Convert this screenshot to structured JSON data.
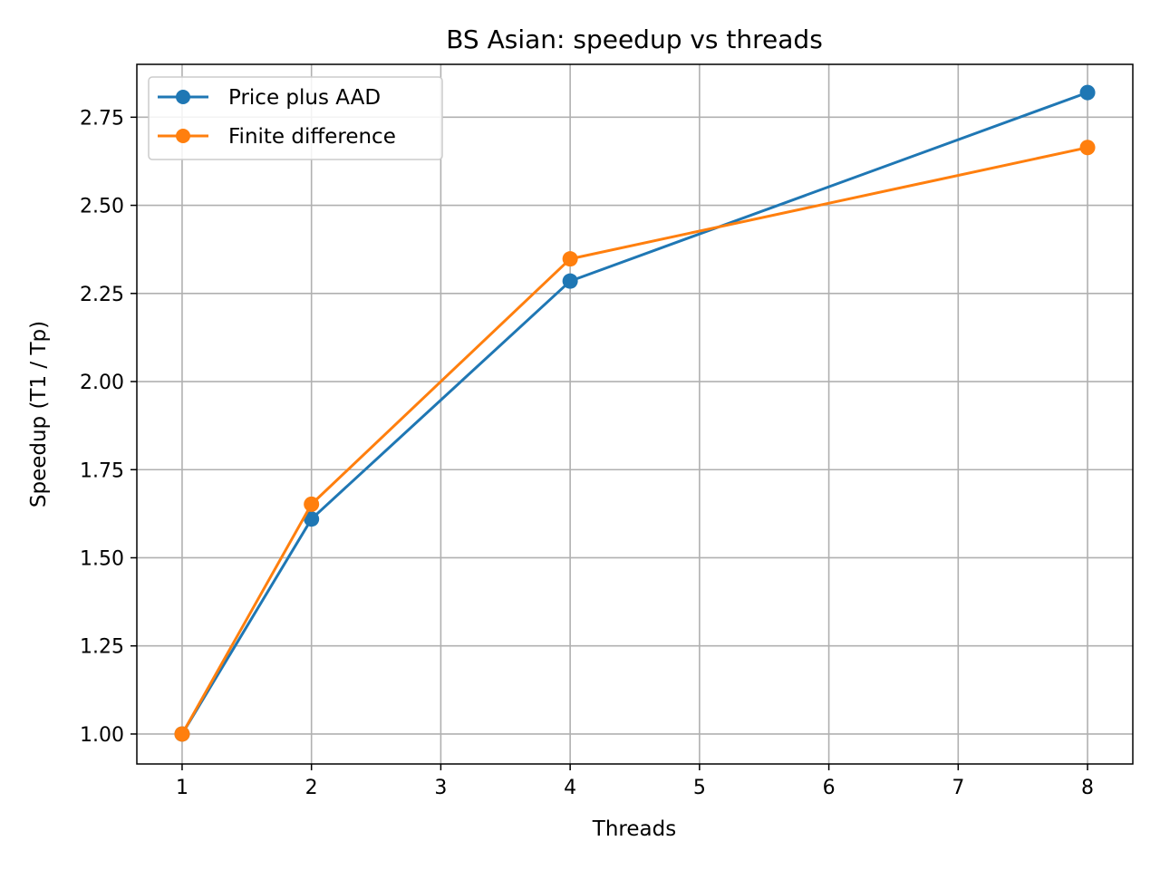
{
  "chart_data": {
    "type": "line",
    "title": "BS Asian: speedup vs threads",
    "xlabel": "Threads",
    "ylabel": "Speedup (T1 / Tp)",
    "xlim": [
      0.65,
      8.35
    ],
    "ylim": [
      0.915,
      2.9
    ],
    "xticks": [
      1,
      2,
      3,
      4,
      5,
      6,
      7,
      8
    ],
    "xtick_labels": [
      "1",
      "2",
      "3",
      "4",
      "5",
      "6",
      "7",
      "8"
    ],
    "yticks": [
      1.0,
      1.25,
      1.5,
      1.75,
      2.0,
      2.25,
      2.5,
      2.75
    ],
    "ytick_labels": [
      "1.00",
      "1.25",
      "1.50",
      "1.75",
      "2.00",
      "2.25",
      "2.50",
      "2.75"
    ],
    "grid": true,
    "legend_position": "top-left",
    "x": [
      1,
      2,
      4,
      8
    ],
    "series": [
      {
        "name": "Price plus AAD",
        "color": "#1f77b4",
        "marker": "circle",
        "values": [
          1.0,
          1.61,
          2.285,
          2.82
        ]
      },
      {
        "name": "Finite difference",
        "color": "#ff7f0e",
        "marker": "circle",
        "values": [
          1.0,
          1.652,
          2.348,
          2.664
        ]
      }
    ]
  }
}
